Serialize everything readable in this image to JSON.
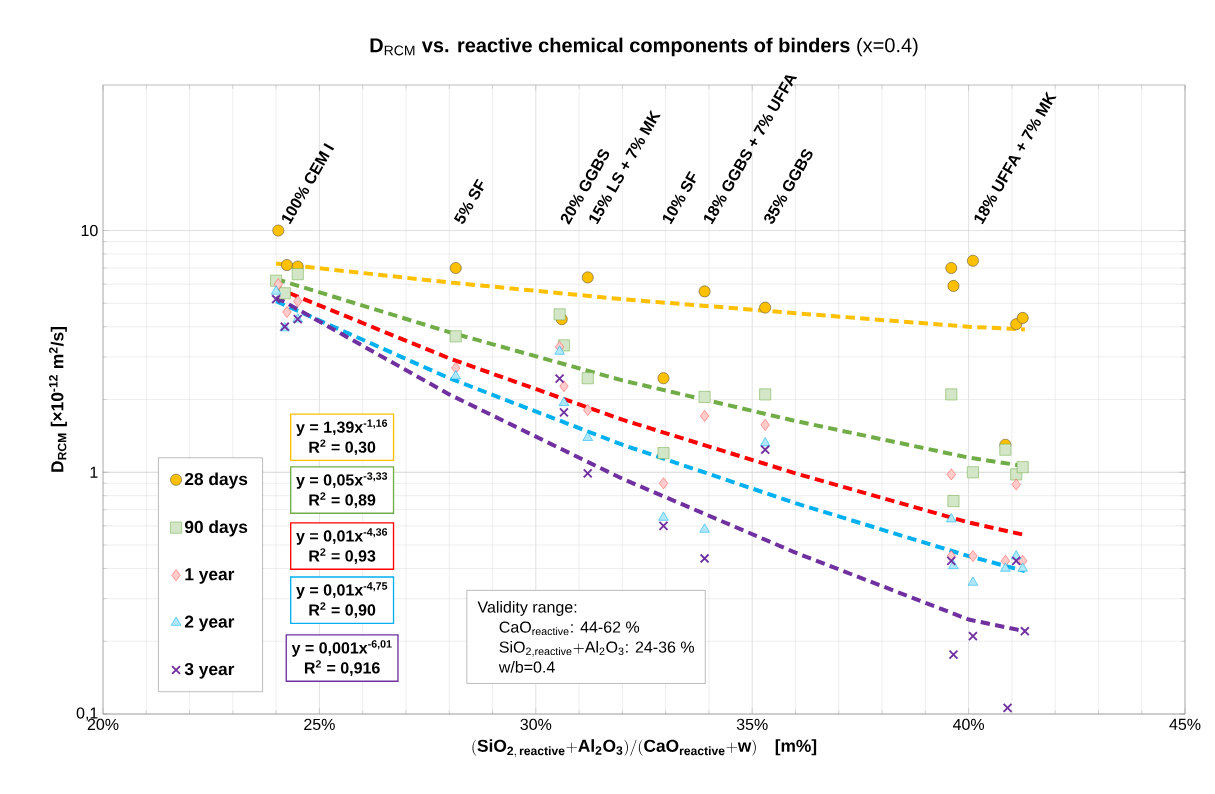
{
  "chart_data": {
    "type": "scatter",
    "title": "**D**$_{RCM}$ **vs. reactive chemical components of binders** (x=0.4)",
    "xlabel": "\\mathbf{(SiO_{2,\\,reactive}{+}Al_{2}O_{3})/(CaO_{reactive}{+}w)}\\quad\\text{[m\\%]}",
    "ylabel": "D$_{RCM}$ [×10$^{-12}$ m$^{2}$/s]",
    "log": "y",
    "grid": true,
    "legend": "bottom left",
    "xlim": [
      20,
      45
    ],
    "ylim": [
      0.1,
      40
    ],
    "xticks": [
      {
        "value": 20,
        "label": "20%"
      },
      {
        "value": 25,
        "label": "25%"
      },
      {
        "value": 30,
        "label": "30%"
      },
      {
        "value": 35,
        "label": "35%"
      },
      {
        "value": 40,
        "label": "40%"
      },
      {
        "value": 45,
        "label": "45%"
      }
    ],
    "yticks": [
      {
        "value": 0.1,
        "label": "0,1"
      },
      1,
      10
    ],
    "series": [
      {
        "name": "28 days",
        "marker": "circle",
        "color": "#ffc000",
        "x": [
          24.05,
          24.25,
          24.5,
          28.15,
          30.6,
          31.2,
          32.95,
          33.9,
          35.3,
          39.6,
          39.65,
          40.1,
          40.85,
          41.1,
          41.25
        ],
        "values": [
          10,
          7.2,
          7.1,
          7.0,
          4.3,
          6.4,
          2.45,
          5.6,
          4.8,
          7.0,
          5.9,
          7.5,
          1.3,
          4.1,
          4.35
        ]
      },
      {
        "name": "90 days",
        "marker": "square",
        "color": "#70ad47",
        "x": [
          24.0,
          24.2,
          24.5,
          28.15,
          30.55,
          30.65,
          31.2,
          32.95,
          33.9,
          35.3,
          39.6,
          39.65,
          40.1,
          40.85,
          41.1,
          41.25
        ],
        "values": [
          6.2,
          5.5,
          6.6,
          3.65,
          4.5,
          3.35,
          2.45,
          1.2,
          2.05,
          2.1,
          2.1,
          0.76,
          1.0,
          1.24,
          0.98,
          1.05
        ]
      },
      {
        "name": "1 year",
        "marker": "diamond",
        "color": "#ff5050",
        "x": [
          24.05,
          24.25,
          24.5,
          28.15,
          30.55,
          30.65,
          31.2,
          32.95,
          33.9,
          35.3,
          39.6,
          39.6,
          40.1,
          40.85,
          41.1,
          41.25
        ],
        "values": [
          6.0,
          4.6,
          5.1,
          2.7,
          3.3,
          2.27,
          1.81,
          0.9,
          1.71,
          1.57,
          0.98,
          0.45,
          0.45,
          0.43,
          0.89,
          0.43
        ]
      },
      {
        "name": "2 year",
        "marker": "triangle",
        "color": "#00b0f0",
        "x": [
          24.0,
          24.2,
          24.5,
          28.15,
          30.55,
          30.65,
          31.2,
          32.95,
          33.9,
          35.3,
          39.6,
          39.65,
          40.1,
          40.85,
          41.1,
          41.25
        ],
        "values": [
          5.6,
          3.95,
          4.3,
          2.5,
          3.16,
          1.94,
          1.39,
          0.65,
          0.58,
          1.32,
          0.64,
          0.41,
          0.35,
          0.4,
          0.45,
          0.4
        ]
      },
      {
        "name": "3 year",
        "marker": "cross",
        "color": "#7030a0",
        "x": [
          24.0,
          24.2,
          24.5,
          30.55,
          30.65,
          31.2,
          32.95,
          33.9,
          35.3,
          39.6,
          39.65,
          40.1,
          40.9,
          41.1,
          41.3
        ],
        "values": [
          5.2,
          4.0,
          4.3,
          2.44,
          1.77,
          0.99,
          0.6,
          0.44,
          1.24,
          0.43,
          0.176,
          0.21,
          0.106,
          0.43,
          0.22
        ]
      },
      {
        "type": "line",
        "line_style": "dashed",
        "color": "#ffc000",
        "x": [
          24,
          28,
          32,
          36,
          40,
          41.3
        ],
        "values": [
          7.3,
          6.1,
          5.2,
          4.55,
          4.0,
          3.9
        ]
      },
      {
        "type": "line",
        "line_style": "dashed",
        "color": "#70ad47",
        "x": [
          24,
          28,
          32,
          36,
          40,
          41.3
        ],
        "values": [
          6.3,
          3.8,
          2.4,
          1.63,
          1.15,
          1.06
        ]
      },
      {
        "type": "line",
        "line_style": "dashed",
        "color": "#ff0000",
        "x": [
          24,
          28,
          32,
          36,
          40,
          41.3
        ],
        "values": [
          5.8,
          2.96,
          1.65,
          0.99,
          0.62,
          0.55
        ]
      },
      {
        "type": "line",
        "line_style": "dashed",
        "color": "#00b0f0",
        "x": [
          24,
          28,
          32,
          36,
          40,
          41.3
        ],
        "values": [
          5.1,
          2.45,
          1.3,
          0.745,
          0.45,
          0.39
        ]
      },
      {
        "type": "line",
        "line_style": "dashed",
        "color": "#7030a0",
        "x": [
          24,
          28,
          32,
          36,
          40,
          41.3
        ],
        "values": [
          5.3,
          2.1,
          0.94,
          0.465,
          0.246,
          0.22
        ]
      }
    ],
    "annotations": [
      "100% CEM I",
      "5% SF",
      "20% GGBS",
      "15% LS + 7% MK",
      "10% SF",
      "18% GGBS + 7% UFFA",
      "35% GGBS",
      "18% UFFA + 7% MK",
      "y = 1,39x$^{-1,16}$",
      "R$^{2}$ = 0,30",
      "y = 0,05x$^{-3,33}$",
      "R$^{2}$ = 0,89",
      "y = 0,01x$^{-4,36}$",
      "R$^{2}$ = 0,93",
      "y = 0,01x$^{-4,75}$",
      "R$^{2}$ = 0,90",
      "y = 0,001x$^{-6,01}$",
      "R$^{2}$ = 0,916",
      "Validity range:",
      "CaO$_{reactive}$: 44-62 %",
      "\\mathrm{SiO_{2,reactive}{+}Al_{2}O_{3}}\\text{: 24-36 \\%}",
      "w/b=0.4"
    ]
  }
}
